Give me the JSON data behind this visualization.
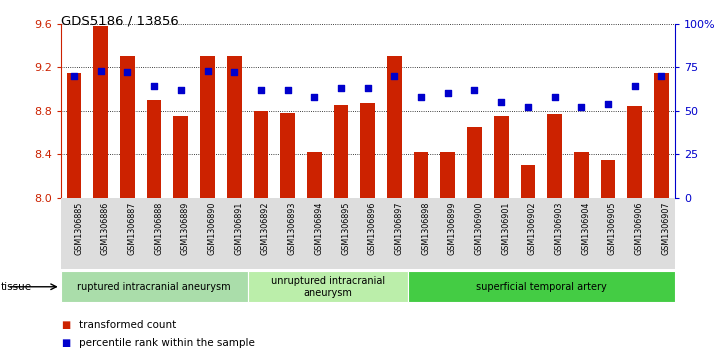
{
  "title": "GDS5186 / 13856",
  "samples": [
    "GSM1306885",
    "GSM1306886",
    "GSM1306887",
    "GSM1306888",
    "GSM1306889",
    "GSM1306890",
    "GSM1306891",
    "GSM1306892",
    "GSM1306893",
    "GSM1306894",
    "GSM1306895",
    "GSM1306896",
    "GSM1306897",
    "GSM1306898",
    "GSM1306899",
    "GSM1306900",
    "GSM1306901",
    "GSM1306902",
    "GSM1306903",
    "GSM1306904",
    "GSM1306905",
    "GSM1306906",
    "GSM1306907"
  ],
  "bar_values": [
    9.15,
    9.58,
    9.3,
    8.9,
    8.75,
    9.3,
    9.3,
    8.8,
    8.78,
    8.42,
    8.85,
    8.87,
    9.3,
    8.42,
    8.42,
    8.65,
    8.75,
    8.3,
    8.77,
    8.42,
    8.35,
    8.84,
    9.15
  ],
  "percentile_values": [
    70,
    73,
    72,
    64,
    62,
    73,
    72,
    62,
    62,
    58,
    63,
    63,
    70,
    58,
    60,
    62,
    55,
    52,
    58,
    52,
    54,
    64,
    70
  ],
  "ylim_left": [
    8.0,
    9.6
  ],
  "ylim_right": [
    0,
    100
  ],
  "yticks_left": [
    8.0,
    8.4,
    8.8,
    9.2,
    9.6
  ],
  "yticks_right": [
    0,
    25,
    50,
    75,
    100
  ],
  "bar_color": "#cc2200",
  "dot_color": "#0000cc",
  "xticklabel_bg": "#dddddd",
  "tissue_groups": [
    {
      "label": "ruptured intracranial aneurysm",
      "start": 0,
      "end": 7,
      "color": "#aaddaa"
    },
    {
      "label": "unruptured intracranial\naneurysm",
      "start": 7,
      "end": 13,
      "color": "#bbeeaa"
    },
    {
      "label": "superficial temporal artery",
      "start": 13,
      "end": 23,
      "color": "#44cc44"
    }
  ],
  "legend_items": [
    {
      "label": "transformed count",
      "color": "#cc2200"
    },
    {
      "label": "percentile rank within the sample",
      "color": "#0000cc"
    }
  ],
  "left_axis_color": "#cc2200",
  "right_axis_color": "#0000cc"
}
